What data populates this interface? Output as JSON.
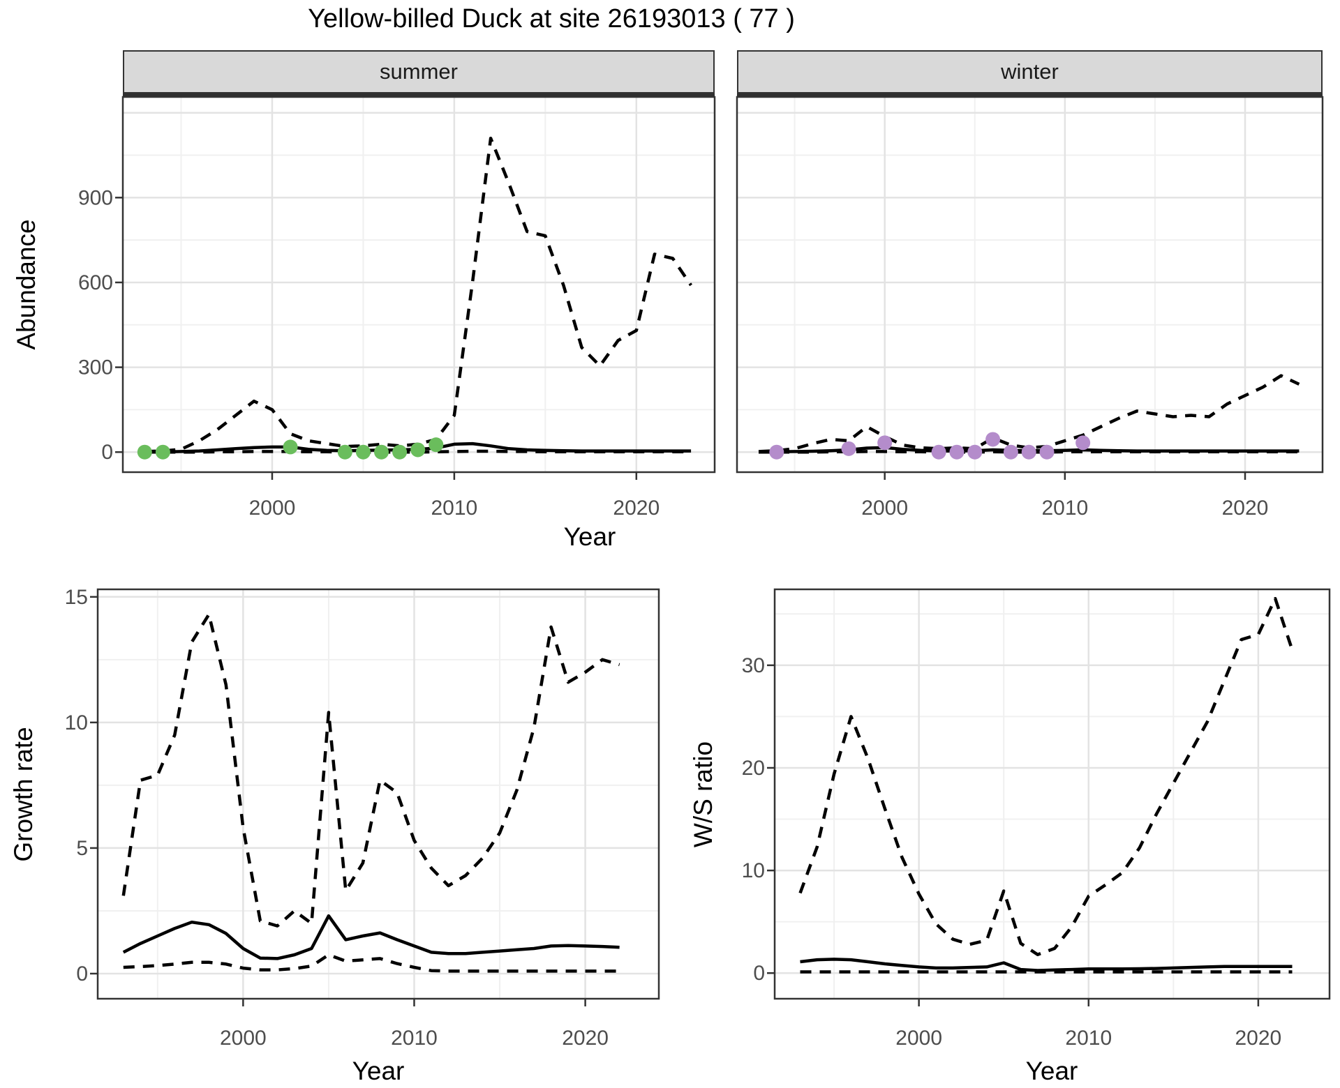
{
  "title": "Yellow-billed Duck at site 26193013 ( 77 )",
  "colors": {
    "summer_points": "#6abd5c",
    "winter_points": "#b48ccb",
    "line": "#000000",
    "strip_bg": "#d9d9d9",
    "grid_major": "#e3e3e3",
    "grid_minor": "#f0f0f0",
    "panel_border": "#333333",
    "tick_text": "#4d4d4d"
  },
  "chart_data": [
    {
      "id": "summer",
      "type": "line",
      "facet": "summer",
      "xlabel": "Year",
      "ylabel": "Abundance",
      "xticks": [
        2000,
        2010,
        2020
      ],
      "yticks": [
        0,
        300,
        600,
        900
      ],
      "xlim": [
        1991.8,
        2024.3
      ],
      "ylim": [
        -71,
        1256
      ],
      "x": [
        1993,
        1994,
        1995,
        1996,
        1997,
        1998,
        1999,
        2000,
        2001,
        2002,
        2003,
        2004,
        2005,
        2006,
        2007,
        2008,
        2009,
        2010,
        2011,
        2012,
        2013,
        2014,
        2015,
        2016,
        2017,
        2018,
        2019,
        2020,
        2021,
        2022,
        2023
      ],
      "series": [
        {
          "name": "upper_ci",
          "style": "dashed",
          "values": [
            2,
            4,
            10,
            40,
            80,
            130,
            180,
            150,
            65,
            40,
            30,
            20,
            22,
            28,
            22,
            28,
            45,
            130,
            600,
            1110,
            950,
            780,
            765,
            590,
            370,
            305,
            395,
            430,
            700,
            685,
            590
          ]
        },
        {
          "name": "estimate",
          "style": "solid",
          "values": [
            1,
            1,
            2,
            4,
            8,
            12,
            16,
            18,
            18,
            10,
            6,
            5,
            6,
            7,
            8,
            10,
            14,
            28,
            30,
            22,
            12,
            8,
            6,
            5,
            4,
            4,
            4,
            4,
            4,
            4,
            4
          ]
        },
        {
          "name": "lower_ci",
          "style": "dashed",
          "values": [
            0,
            0,
            0,
            0,
            1,
            1,
            2,
            2,
            2,
            1,
            1,
            0,
            0,
            0,
            0,
            0,
            1,
            2,
            3,
            3,
            2,
            2,
            1,
            1,
            1,
            1,
            1,
            1,
            1,
            1,
            1
          ]
        }
      ],
      "points": {
        "name": "observed-counts",
        "color": "#6abd5c",
        "x": [
          1993,
          1994,
          2001,
          2004,
          2005,
          2006,
          2007,
          2008,
          2009
        ],
        "y": [
          0,
          0,
          18,
          0,
          0,
          0,
          0,
          8,
          26
        ]
      }
    },
    {
      "id": "winter",
      "type": "line",
      "facet": "winter",
      "xlabel": "Year",
      "ylabel": "Abundance",
      "xticks": [
        2000,
        2010,
        2020
      ],
      "yticks": [
        0,
        300,
        600,
        900
      ],
      "xlim": [
        1991.8,
        2024.3
      ],
      "ylim": [
        -71,
        1256
      ],
      "x": [
        1993,
        1994,
        1995,
        1996,
        1997,
        1998,
        1999,
        2000,
        2001,
        2002,
        2003,
        2004,
        2005,
        2006,
        2007,
        2008,
        2009,
        2010,
        2011,
        2012,
        2013,
        2014,
        2015,
        2016,
        2017,
        2018,
        2019,
        2020,
        2021,
        2022,
        2023
      ],
      "series": [
        {
          "name": "upper_ci",
          "style": "dashed",
          "values": [
            2,
            5,
            12,
            30,
            45,
            40,
            90,
            55,
            25,
            15,
            12,
            15,
            12,
            50,
            25,
            15,
            20,
            40,
            60,
            90,
            120,
            145,
            135,
            125,
            130,
            125,
            170,
            200,
            230,
            270,
            240
          ]
        },
        {
          "name": "estimate",
          "style": "solid",
          "values": [
            1,
            1,
            2,
            3,
            5,
            8,
            14,
            16,
            10,
            6,
            4,
            4,
            5,
            8,
            6,
            5,
            5,
            6,
            8,
            6,
            5,
            4,
            4,
            4,
            4,
            4,
            4,
            4,
            4,
            4,
            4
          ]
        },
        {
          "name": "lower_ci",
          "style": "dashed",
          "values": [
            0,
            0,
            0,
            0,
            1,
            1,
            2,
            2,
            1,
            1,
            0,
            0,
            0,
            1,
            0,
            0,
            0,
            1,
            1,
            1,
            1,
            1,
            1,
            1,
            1,
            1,
            1,
            1,
            1,
            1,
            1
          ]
        }
      ],
      "points": {
        "name": "observed-counts",
        "color": "#b48ccb",
        "x": [
          1994,
          1998,
          2000,
          2003,
          2004,
          2005,
          2006,
          2007,
          2008,
          2009,
          2011
        ],
        "y": [
          0,
          12,
          33,
          0,
          0,
          0,
          45,
          0,
          0,
          0,
          33
        ]
      }
    },
    {
      "id": "growth",
      "type": "line",
      "facet": "",
      "xlabel": "Year",
      "ylabel": "Growth rate",
      "xticks": [
        2000,
        2010,
        2020
      ],
      "yticks": [
        0,
        5,
        10,
        15
      ],
      "xlim": [
        1991.5,
        2024.3
      ],
      "ylim": [
        -1.0,
        15.3
      ],
      "x": [
        1993,
        1994,
        1995,
        1996,
        1997,
        1998,
        1999,
        2000,
        2001,
        2002,
        2003,
        2004,
        2005,
        2006,
        2007,
        2008,
        2009,
        2010,
        2011,
        2012,
        2013,
        2014,
        2015,
        2016,
        2017,
        2018,
        2019,
        2020,
        2021,
        2022
      ],
      "series": [
        {
          "name": "upper_ci",
          "style": "dashed",
          "values": [
            3.1,
            7.7,
            7.9,
            9.5,
            13.2,
            14.3,
            11.5,
            5.8,
            2.1,
            1.9,
            2.5,
            2.0,
            10.4,
            3.3,
            4.4,
            7.7,
            7.2,
            5.3,
            4.2,
            3.5,
            3.9,
            4.6,
            5.6,
            7.3,
            9.8,
            13.8,
            11.6,
            12.0,
            12.5,
            12.3
          ]
        },
        {
          "name": "estimate",
          "style": "solid",
          "values": [
            0.85,
            1.2,
            1.5,
            1.8,
            2.05,
            1.95,
            1.6,
            1.0,
            0.62,
            0.6,
            0.75,
            1.0,
            2.3,
            1.35,
            1.5,
            1.62,
            1.35,
            1.1,
            0.85,
            0.8,
            0.8,
            0.85,
            0.9,
            0.95,
            1.0,
            1.1,
            1.12,
            1.1,
            1.08,
            1.05
          ]
        },
        {
          "name": "lower_ci",
          "style": "dashed",
          "values": [
            0.25,
            0.28,
            0.32,
            0.38,
            0.45,
            0.45,
            0.38,
            0.22,
            0.15,
            0.15,
            0.2,
            0.3,
            0.75,
            0.5,
            0.55,
            0.6,
            0.4,
            0.25,
            0.12,
            0.1,
            0.1,
            0.1,
            0.1,
            0.1,
            0.1,
            0.1,
            0.1,
            0.1,
            0.1,
            0.1
          ]
        }
      ],
      "points": null
    },
    {
      "id": "ws",
      "type": "line",
      "facet": "",
      "xlabel": "Year",
      "ylabel": "W/S ratio",
      "xticks": [
        2000,
        2010,
        2020
      ],
      "yticks": [
        0,
        10,
        20,
        30
      ],
      "xlim": [
        1991.5,
        2024.2
      ],
      "ylim": [
        -2.5,
        37.4
      ],
      "x": [
        1993,
        1994,
        1995,
        1996,
        1997,
        1998,
        1999,
        2000,
        2001,
        2002,
        2003,
        2004,
        2005,
        2006,
        2007,
        2008,
        2009,
        2010,
        2011,
        2012,
        2013,
        2014,
        2015,
        2016,
        2017,
        2018,
        2019,
        2020,
        2021,
        2022
      ],
      "series": [
        {
          "name": "upper_ci",
          "style": "dashed",
          "values": [
            7.8,
            12.3,
            19.4,
            25.0,
            20.9,
            16.0,
            11.3,
            7.7,
            4.8,
            3.3,
            2.8,
            3.2,
            8.0,
            2.9,
            1.8,
            2.4,
            4.5,
            7.5,
            8.6,
            9.8,
            12.2,
            15.5,
            18.5,
            21.5,
            24.5,
            28.5,
            32.5,
            33.0,
            36.5,
            31.5
          ]
        },
        {
          "name": "estimate",
          "style": "solid",
          "values": [
            1.1,
            1.3,
            1.35,
            1.3,
            1.1,
            0.9,
            0.75,
            0.6,
            0.5,
            0.5,
            0.55,
            0.6,
            1.0,
            0.35,
            0.25,
            0.3,
            0.35,
            0.4,
            0.4,
            0.4,
            0.42,
            0.45,
            0.5,
            0.55,
            0.6,
            0.65,
            0.65,
            0.65,
            0.65,
            0.65
          ]
        },
        {
          "name": "lower_ci",
          "style": "dashed",
          "values": [
            0.12,
            0.12,
            0.12,
            0.12,
            0.12,
            0.12,
            0.12,
            0.12,
            0.12,
            0.12,
            0.12,
            0.12,
            0.12,
            0.12,
            0.12,
            0.12,
            0.12,
            0.12,
            0.12,
            0.12,
            0.12,
            0.12,
            0.12,
            0.12,
            0.12,
            0.12,
            0.12,
            0.12,
            0.12,
            0.12
          ]
        }
      ],
      "points": null
    }
  ]
}
